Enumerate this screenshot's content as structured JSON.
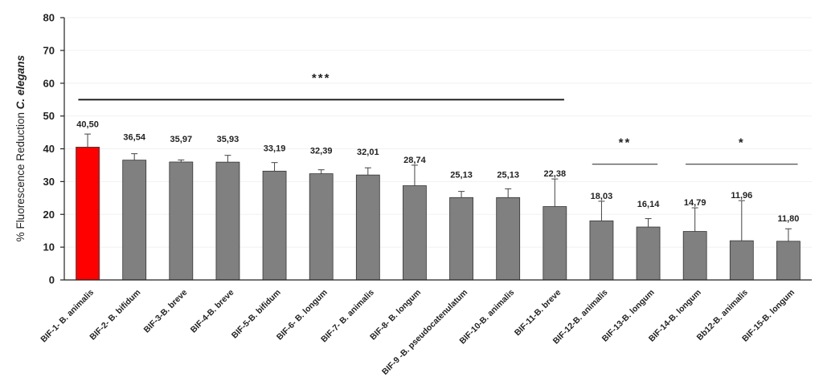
{
  "chart_data": {
    "type": "bar",
    "ylabel_prefix": "% Fluorescence Reduction ",
    "ylabel_italic": "C. elegans",
    "ylim": [
      0,
      80
    ],
    "yticks": [
      0,
      10,
      20,
      30,
      40,
      50,
      60,
      70,
      80
    ],
    "categories": [
      "BIF-1- B. animalis",
      "BIF-2- B. bifidum",
      "BIF-3-B. breve",
      "BIF-4-B. breve",
      "BIF-5-B. bifidum",
      "BIF-6- B. longum",
      "BIF-7- B. animalis",
      "BIF-8- B. longum",
      "BIF-9 -B. pseudocatenulatum",
      "BIF-10-B. animalis",
      "BIF-11-B. breve",
      "BIF-12-B. animalis",
      "BIF-13-B. longum",
      "BIF-14-B. longum",
      "Bb12-B. animalis",
      "BIF-15-B. longum"
    ],
    "values": [
      40.5,
      36.54,
      35.97,
      35.93,
      33.19,
      32.39,
      32.01,
      28.74,
      25.13,
      25.13,
      22.38,
      18.03,
      16.14,
      14.79,
      11.96,
      11.8
    ],
    "value_labels": [
      "40,50",
      "36,54",
      "35,97",
      "35,93",
      "33,19",
      "32,39",
      "32,01",
      "28,74",
      "25,13",
      "25,13",
      "22,38",
      "18,03",
      "16,14",
      "14,79",
      "11,96",
      "11,80"
    ],
    "error_upper": [
      44.5,
      38.5,
      36.6,
      38.0,
      35.8,
      33.6,
      34.2,
      35.0,
      27.0,
      27.8,
      30.8,
      24.0,
      18.7,
      22.0,
      24.2,
      15.6
    ],
    "bar_colors": [
      "#ff0000",
      "#808080",
      "#808080",
      "#808080",
      "#808080",
      "#808080",
      "#808080",
      "#808080",
      "#808080",
      "#808080",
      "#808080",
      "#808080",
      "#808080",
      "#808080",
      "#808080",
      "#808080"
    ],
    "significance": [
      {
        "label": "***",
        "from": 0,
        "to": 10,
        "y": 55,
        "line_width": 2
      },
      {
        "label": "**",
        "from": 11,
        "to": 12,
        "y": 35.3,
        "line_width": 1
      },
      {
        "label": "*",
        "from": 13,
        "to": 15,
        "y": 35.3,
        "line_width": 1
      }
    ]
  }
}
